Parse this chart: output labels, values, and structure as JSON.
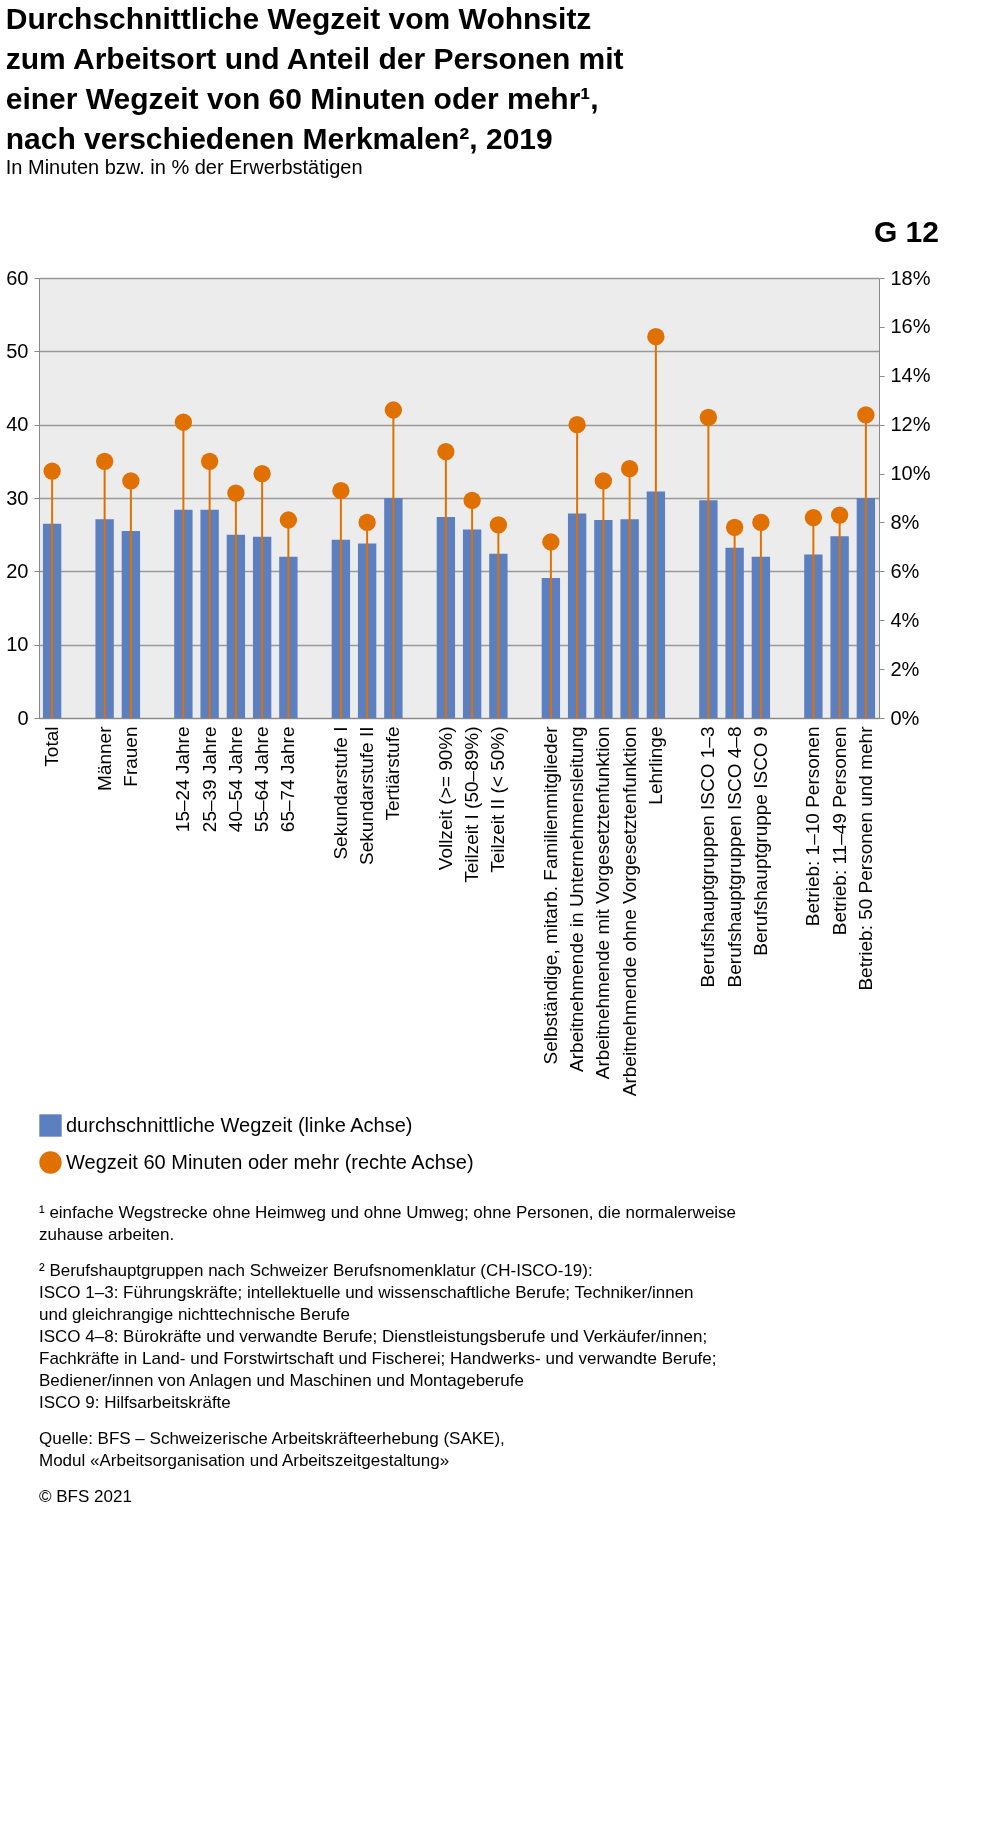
{
  "chart_data": {
    "type": "bar",
    "title": "Durchschnittliche Wegzeit vom Wohnsitz\nzum Arbeitsort und Anteil der Personen mit\neiner Wegzeit von 60 Minuten oder mehr¹,\nnach verschiedenen Merkmalen², 2019",
    "subtitle": "In Minuten bzw. in % der Erwerbstätigen",
    "categories": [
      "Total",
      null,
      "Männer",
      "Frauen",
      null,
      "15–24 Jahre",
      "25–39 Jahre",
      "40–54 Jahre",
      "55–64 Jahre",
      "65–74 Jahre",
      null,
      "Sekundarstufe I",
      "Sekundarstufe II",
      "Tertiärstufe",
      null,
      "Vollzeit (>= 90%)",
      "Teilzeit I (50–89%)",
      "Teilzeit II (< 50%)",
      null,
      "Selbständige, mitarb. Familienmitglieder",
      "Arbeitnehmende in Unternehmensleitung",
      "Arbeitnehmende mit Vorgesetztenfunktion",
      "Arbeitnehmende ohne Vorgesetztenfunktion",
      "Lehrlinge",
      null,
      "Berufshauptgruppen ISCO 1–3",
      "Berufshauptgruppen ISCO 4–8",
      "Berufshauptgruppe ISCO 9",
      null,
      "Betrieb: 1–10 Personen",
      "Betrieb: 11–49 Personen",
      "Betrieb: 50 Personen und mehr"
    ],
    "series": [
      {
        "name": "durchschnittliche Wegzeit (linke Achse)",
        "color": "#5b7fbf",
        "values": [
          26.5,
          null,
          27.1,
          25.5,
          null,
          28.4,
          28.4,
          25.0,
          24.7,
          22.0,
          null,
          24.3,
          23.8,
          30.0,
          null,
          27.4,
          25.7,
          22.4,
          null,
          19.1,
          27.9,
          27.0,
          27.1,
          30.9,
          null,
          29.7,
          23.2,
          22.0,
          null,
          22.3,
          24.8,
          30.0
        ]
      },
      {
        "name": "Wegzeit 60 Minuten oder mehr (rechte Achse)",
        "type": "lollipop",
        "axis": "y2",
        "color": "#e07000",
        "values": [
          10.1,
          null,
          10.5,
          9.7,
          null,
          12.1,
          10.5,
          9.2,
          10.0,
          8.1,
          null,
          9.3,
          8.0,
          12.6,
          null,
          10.9,
          8.9,
          7.9,
          null,
          7.2,
          12.0,
          9.7,
          10.2,
          15.6,
          null,
          12.3,
          7.8,
          8.0,
          null,
          8.2,
          8.3,
          12.4
        ]
      }
    ],
    "ylim": [
      0,
      60
    ],
    "yticks": [
      0,
      10,
      20,
      30,
      40,
      50,
      60
    ],
    "y2lim": [
      0,
      18
    ],
    "y2ticks": [
      {
        "value": 0,
        "label": "0%"
      },
      {
        "value": 2,
        "label": "2%"
      },
      {
        "value": 4,
        "label": "4%"
      },
      {
        "value": 6,
        "label": "6%"
      },
      {
        "value": 8,
        "label": "8%"
      },
      {
        "value": 10,
        "label": "10%"
      },
      {
        "value": 12,
        "label": "12%"
      },
      {
        "value": 14,
        "label": "14%"
      },
      {
        "value": 16,
        "label": "16%"
      },
      {
        "value": 18,
        "label": "18%"
      }
    ],
    "grid": "y",
    "legend": "bottom",
    "annotations": [
      "G 12",
      "¹  einfache Wegstrecke ohne Heimweg und ohne Umweg; ohne Personen, die normalerweise\n    zuhause arbeiten.",
      "²  Berufshauptgruppen nach Schweizer Berufsnomenklatur (CH-ISCO-19):\n    ISCO 1–3: Führungskräfte; intellektuelle und wissenschaftliche Berufe; Techniker/innen\n    und gleichrangige nichttechnische Berufe\n    ISCO 4–8: Bürokräfte und verwandte Berufe; Dienstleistungsberufe und Verkäufer/innen;\n    Fachkräfte in Land- und Forstwirtschaft und Fischerei; Handwerks- und verwandte Berufe;\n    Bediener/innen von Anlagen und Maschinen und Montageberufe\n    ISCO 9: Hilfsarbeitskräfte",
      "Quelle: BFS – Schweizerische Arbeitskräfteerhebung (SAKE),\n    Modul  «Arbeitsorganisation und Arbeitszeitgestaltung»",
      "© BFS 2021"
    ]
  }
}
